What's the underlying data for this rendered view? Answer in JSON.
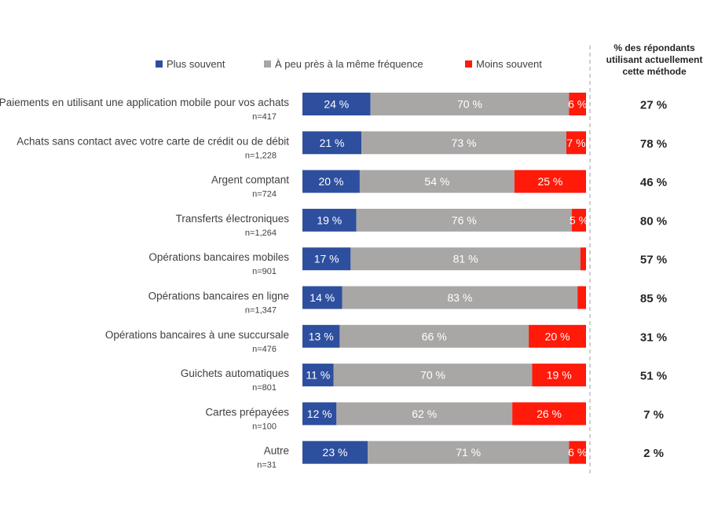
{
  "chart_data": {
    "type": "bar",
    "orientation": "horizontal",
    "stacked": true,
    "categories": [
      {
        "label": "Paiements en utilisant une application mobile pour vos achats",
        "n": "n=417"
      },
      {
        "label": "Achats sans contact avec votre carte de crédit ou de débit",
        "n": "n=1,228"
      },
      {
        "label": "Argent comptant",
        "n": "n=724"
      },
      {
        "label": "Transferts électroniques",
        "n": "n=1,264"
      },
      {
        "label": "Opérations bancaires mobiles",
        "n": "n=901"
      },
      {
        "label": "Opérations bancaires en ligne",
        "n": "n=1,347"
      },
      {
        "label": "Opérations bancaires à une succursale",
        "n": "n=476"
      },
      {
        "label": "Guichets automatiques",
        "n": "n=801"
      },
      {
        "label": "Cartes prépayées",
        "n": "n=100"
      },
      {
        "label": "Autre",
        "n": "n=31"
      }
    ],
    "series": [
      {
        "name": "Plus souvent",
        "color": "#2e4f9e",
        "values": [
          24,
          21,
          20,
          19,
          17,
          14,
          13,
          11,
          12,
          23
        ],
        "labels": [
          "24 %",
          "21 %",
          "20 %",
          "19 %",
          "17 %",
          "14 %",
          "13 %",
          "11 %",
          "12 %",
          "23 %"
        ]
      },
      {
        "name": "À peu près à la même fréquence",
        "color": "#a9a6a6",
        "values": [
          70,
          73,
          54,
          76,
          81,
          83,
          66,
          70,
          62,
          71
        ],
        "labels": [
          "70 %",
          "73 %",
          "54 %",
          "76 %",
          "81 %",
          "83 %",
          "66 %",
          "70 %",
          "62 %",
          "71 %"
        ]
      },
      {
        "name": "Moins souvent",
        "color": "#ff1a0a",
        "values": [
          6,
          7,
          25,
          5,
          2,
          3,
          20,
          19,
          26,
          6
        ],
        "labels": [
          "6 %",
          "7 %",
          "25 %",
          "5 %",
          "",
          "",
          "20 %",
          "19 %",
          "26 %",
          "6 %"
        ]
      }
    ],
    "side_column": {
      "header": "% des répondants utilisant actuellement cette méthode",
      "values": [
        "27 %",
        "78 %",
        "46 %",
        "80 %",
        "57 %",
        "85 %",
        "31 %",
        "51 %",
        "7 %",
        "2 %"
      ]
    },
    "legend": "top",
    "grid": false
  }
}
